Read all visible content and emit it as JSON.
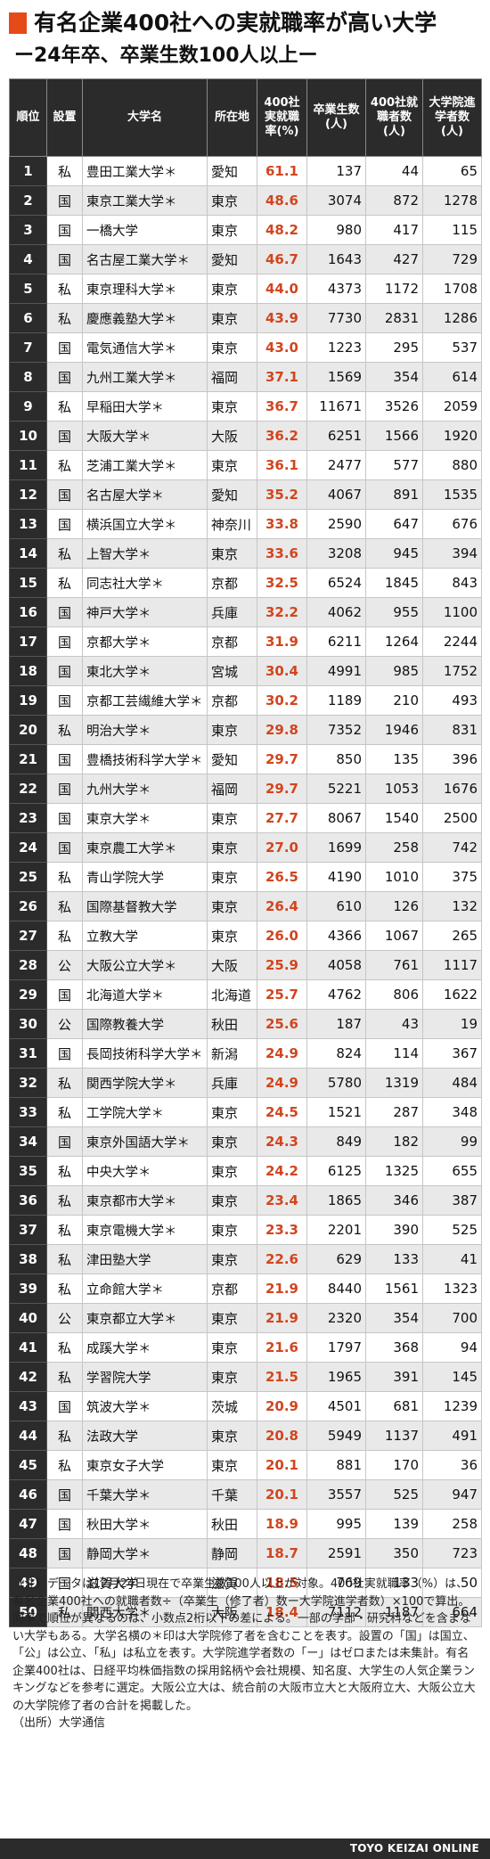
{
  "header": {
    "title": "有名企業400社への実就職率が高い大学",
    "subtitle": "ー24年卒、卒業生数100人以上ー",
    "accent_color": "#e64a19"
  },
  "table": {
    "columns": [
      "順位",
      "設置",
      "大学名",
      "所在地",
      "400社実就職率(%)",
      "卒業生数(人)",
      "400社就職者数(人)",
      "大学院進学者数(人)"
    ],
    "rows": [
      {
        "rank": "1",
        "type": "私",
        "name": "豊田工業大学＊",
        "location": "愛知",
        "rate": "61.1",
        "graduates": "137",
        "employed": "44",
        "grad_school": "65"
      },
      {
        "rank": "2",
        "type": "国",
        "name": "東京工業大学＊",
        "location": "東京",
        "rate": "48.6",
        "graduates": "3074",
        "employed": "872",
        "grad_school": "1278"
      },
      {
        "rank": "3",
        "type": "国",
        "name": "一橋大学",
        "location": "東京",
        "rate": "48.2",
        "graduates": "980",
        "employed": "417",
        "grad_school": "115"
      },
      {
        "rank": "4",
        "type": "国",
        "name": "名古屋工業大学＊",
        "location": "愛知",
        "rate": "46.7",
        "graduates": "1643",
        "employed": "427",
        "grad_school": "729"
      },
      {
        "rank": "5",
        "type": "私",
        "name": "東京理科大学＊",
        "location": "東京",
        "rate": "44.0",
        "graduates": "4373",
        "employed": "1172",
        "grad_school": "1708"
      },
      {
        "rank": "6",
        "type": "私",
        "name": "慶應義塾大学＊",
        "location": "東京",
        "rate": "43.9",
        "graduates": "7730",
        "employed": "2831",
        "grad_school": "1286"
      },
      {
        "rank": "7",
        "type": "国",
        "name": "電気通信大学＊",
        "location": "東京",
        "rate": "43.0",
        "graduates": "1223",
        "employed": "295",
        "grad_school": "537"
      },
      {
        "rank": "8",
        "type": "国",
        "name": "九州工業大学＊",
        "location": "福岡",
        "rate": "37.1",
        "graduates": "1569",
        "employed": "354",
        "grad_school": "614"
      },
      {
        "rank": "9",
        "type": "私",
        "name": "早稲田大学＊",
        "location": "東京",
        "rate": "36.7",
        "graduates": "11671",
        "employed": "3526",
        "grad_school": "2059"
      },
      {
        "rank": "10",
        "type": "国",
        "name": "大阪大学＊",
        "location": "大阪",
        "rate": "36.2",
        "graduates": "6251",
        "employed": "1566",
        "grad_school": "1920"
      },
      {
        "rank": "11",
        "type": "私",
        "name": "芝浦工業大学＊",
        "location": "東京",
        "rate": "36.1",
        "graduates": "2477",
        "employed": "577",
        "grad_school": "880"
      },
      {
        "rank": "12",
        "type": "国",
        "name": "名古屋大学＊",
        "location": "愛知",
        "rate": "35.2",
        "graduates": "4067",
        "employed": "891",
        "grad_school": "1535"
      },
      {
        "rank": "13",
        "type": "国",
        "name": "横浜国立大学＊",
        "location": "神奈川",
        "rate": "33.8",
        "graduates": "2590",
        "employed": "647",
        "grad_school": "676"
      },
      {
        "rank": "14",
        "type": "私",
        "name": "上智大学＊",
        "location": "東京",
        "rate": "33.6",
        "graduates": "3208",
        "employed": "945",
        "grad_school": "394"
      },
      {
        "rank": "15",
        "type": "私",
        "name": "同志社大学＊",
        "location": "京都",
        "rate": "32.5",
        "graduates": "6524",
        "employed": "1845",
        "grad_school": "843"
      },
      {
        "rank": "16",
        "type": "国",
        "name": "神戸大学＊",
        "location": "兵庫",
        "rate": "32.2",
        "graduates": "4062",
        "employed": "955",
        "grad_school": "1100"
      },
      {
        "rank": "17",
        "type": "国",
        "name": "京都大学＊",
        "location": "京都",
        "rate": "31.9",
        "graduates": "6211",
        "employed": "1264",
        "grad_school": "2244"
      },
      {
        "rank": "18",
        "type": "国",
        "name": "東北大学＊",
        "location": "宮城",
        "rate": "30.4",
        "graduates": "4991",
        "employed": "985",
        "grad_school": "1752"
      },
      {
        "rank": "19",
        "type": "国",
        "name": "京都工芸繊維大学＊",
        "location": "京都",
        "rate": "30.2",
        "graduates": "1189",
        "employed": "210",
        "grad_school": "493"
      },
      {
        "rank": "20",
        "type": "私",
        "name": "明治大学＊",
        "location": "東京",
        "rate": "29.8",
        "graduates": "7352",
        "employed": "1946",
        "grad_school": "831"
      },
      {
        "rank": "21",
        "type": "国",
        "name": "豊橋技術科学大学＊",
        "location": "愛知",
        "rate": "29.7",
        "graduates": "850",
        "employed": "135",
        "grad_school": "396"
      },
      {
        "rank": "22",
        "type": "国",
        "name": "九州大学＊",
        "location": "福岡",
        "rate": "29.7",
        "graduates": "5221",
        "employed": "1053",
        "grad_school": "1676"
      },
      {
        "rank": "23",
        "type": "国",
        "name": "東京大学＊",
        "location": "東京",
        "rate": "27.7",
        "graduates": "8067",
        "employed": "1540",
        "grad_school": "2500"
      },
      {
        "rank": "24",
        "type": "国",
        "name": "東京農工大学＊",
        "location": "東京",
        "rate": "27.0",
        "graduates": "1699",
        "employed": "258",
        "grad_school": "742"
      },
      {
        "rank": "25",
        "type": "私",
        "name": "青山学院大学",
        "location": "東京",
        "rate": "26.5",
        "graduates": "4190",
        "employed": "1010",
        "grad_school": "375"
      },
      {
        "rank": "26",
        "type": "私",
        "name": "国際基督教大学",
        "location": "東京",
        "rate": "26.4",
        "graduates": "610",
        "employed": "126",
        "grad_school": "132"
      },
      {
        "rank": "27",
        "type": "私",
        "name": "立教大学",
        "location": "東京",
        "rate": "26.0",
        "graduates": "4366",
        "employed": "1067",
        "grad_school": "265"
      },
      {
        "rank": "28",
        "type": "公",
        "name": "大阪公立大学＊",
        "location": "大阪",
        "rate": "25.9",
        "graduates": "4058",
        "employed": "761",
        "grad_school": "1117"
      },
      {
        "rank": "29",
        "type": "国",
        "name": "北海道大学＊",
        "location": "北海道",
        "rate": "25.7",
        "graduates": "4762",
        "employed": "806",
        "grad_school": "1622"
      },
      {
        "rank": "30",
        "type": "公",
        "name": "国際教養大学",
        "location": "秋田",
        "rate": "25.6",
        "graduates": "187",
        "employed": "43",
        "grad_school": "19"
      },
      {
        "rank": "31",
        "type": "国",
        "name": "長岡技術科学大学＊",
        "location": "新潟",
        "rate": "24.9",
        "graduates": "824",
        "employed": "114",
        "grad_school": "367"
      },
      {
        "rank": "32",
        "type": "私",
        "name": "関西学院大学＊",
        "location": "兵庫",
        "rate": "24.9",
        "graduates": "5780",
        "employed": "1319",
        "grad_school": "484"
      },
      {
        "rank": "33",
        "type": "私",
        "name": "工学院大学＊",
        "location": "東京",
        "rate": "24.5",
        "graduates": "1521",
        "employed": "287",
        "grad_school": "348"
      },
      {
        "rank": "34",
        "type": "国",
        "name": "東京外国語大学＊",
        "location": "東京",
        "rate": "24.3",
        "graduates": "849",
        "employed": "182",
        "grad_school": "99"
      },
      {
        "rank": "35",
        "type": "私",
        "name": "中央大学＊",
        "location": "東京",
        "rate": "24.2",
        "graduates": "6125",
        "employed": "1325",
        "grad_school": "655"
      },
      {
        "rank": "36",
        "type": "私",
        "name": "東京都市大学＊",
        "location": "東京",
        "rate": "23.4",
        "graduates": "1865",
        "employed": "346",
        "grad_school": "387"
      },
      {
        "rank": "37",
        "type": "私",
        "name": "東京電機大学＊",
        "location": "東京",
        "rate": "23.3",
        "graduates": "2201",
        "employed": "390",
        "grad_school": "525"
      },
      {
        "rank": "38",
        "type": "私",
        "name": "津田塾大学",
        "location": "東京",
        "rate": "22.6",
        "graduates": "629",
        "employed": "133",
        "grad_school": "41"
      },
      {
        "rank": "39",
        "type": "私",
        "name": "立命館大学＊",
        "location": "京都",
        "rate": "21.9",
        "graduates": "8440",
        "employed": "1561",
        "grad_school": "1323"
      },
      {
        "rank": "40",
        "type": "公",
        "name": "東京都立大学＊",
        "location": "東京",
        "rate": "21.9",
        "graduates": "2320",
        "employed": "354",
        "grad_school": "700"
      },
      {
        "rank": "41",
        "type": "私",
        "name": "成蹊大学＊",
        "location": "東京",
        "rate": "21.6",
        "graduates": "1797",
        "employed": "368",
        "grad_school": "94"
      },
      {
        "rank": "42",
        "type": "私",
        "name": "学習院大学",
        "location": "東京",
        "rate": "21.5",
        "graduates": "1965",
        "employed": "391",
        "grad_school": "145"
      },
      {
        "rank": "43",
        "type": "国",
        "name": "筑波大学＊",
        "location": "茨城",
        "rate": "20.9",
        "graduates": "4501",
        "employed": "681",
        "grad_school": "1239"
      },
      {
        "rank": "44",
        "type": "私",
        "name": "法政大学",
        "location": "東京",
        "rate": "20.8",
        "graduates": "5949",
        "employed": "1137",
        "grad_school": "491"
      },
      {
        "rank": "45",
        "type": "私",
        "name": "東京女子大学",
        "location": "東京",
        "rate": "20.1",
        "graduates": "881",
        "employed": "170",
        "grad_school": "36"
      },
      {
        "rank": "46",
        "type": "国",
        "name": "千葉大学＊",
        "location": "千葉",
        "rate": "20.1",
        "graduates": "3557",
        "employed": "525",
        "grad_school": "947"
      },
      {
        "rank": "47",
        "type": "国",
        "name": "秋田大学＊",
        "location": "秋田",
        "rate": "18.9",
        "graduates": "995",
        "employed": "139",
        "grad_school": "258"
      },
      {
        "rank": "48",
        "type": "国",
        "name": "静岡大学＊",
        "location": "静岡",
        "rate": "18.7",
        "graduates": "2591",
        "employed": "350",
        "grad_school": "723"
      },
      {
        "rank": "49",
        "type": "国",
        "name": "滋賀大学",
        "location": "滋賀",
        "rate": "18.5",
        "graduates": "769",
        "employed": "133",
        "grad_school": "50"
      },
      {
        "rank": "50",
        "type": "私",
        "name": "関西大学＊",
        "location": "大阪",
        "rate": "18.4",
        "graduates": "7112",
        "employed": "1187",
        "grad_school": "664"
      }
    ]
  },
  "note": {
    "text": "（注）データは12月24日現在で卒業生数100人以上が対象。400社実就職率（%）は、有名企業400社への就職者数÷（卒業生（修了者）数ー大学院進学者数）×100で算出。同率で順位が異なるのは、小数点2桁以下の差による。一部の学部・研究科などを含まない大学もある。大学名横の＊印は大学院修了者を含むことを表す。設置の「国」は国立、「公」は公立、「私」は私立を表す。大学院進学者数の「ー」はゼロまたは未集計。有名企業400社は、日経平均株価指数の採用銘柄や会社規模、知名度、大学生の人気企業ランキングなどを参考に選定。大阪公立大は、統合前の大阪市立大と大阪府立大、大阪公立大の大学院修了者の合計を掲載した。",
    "source": "（出所）大学通信"
  },
  "footer": {
    "brand": "TOYO KEIZAI ONLINE"
  },
  "colors": {
    "header_bg": "#2b2b2b",
    "rate_text": "#d2451e",
    "stripe": "#e9e9e9"
  }
}
